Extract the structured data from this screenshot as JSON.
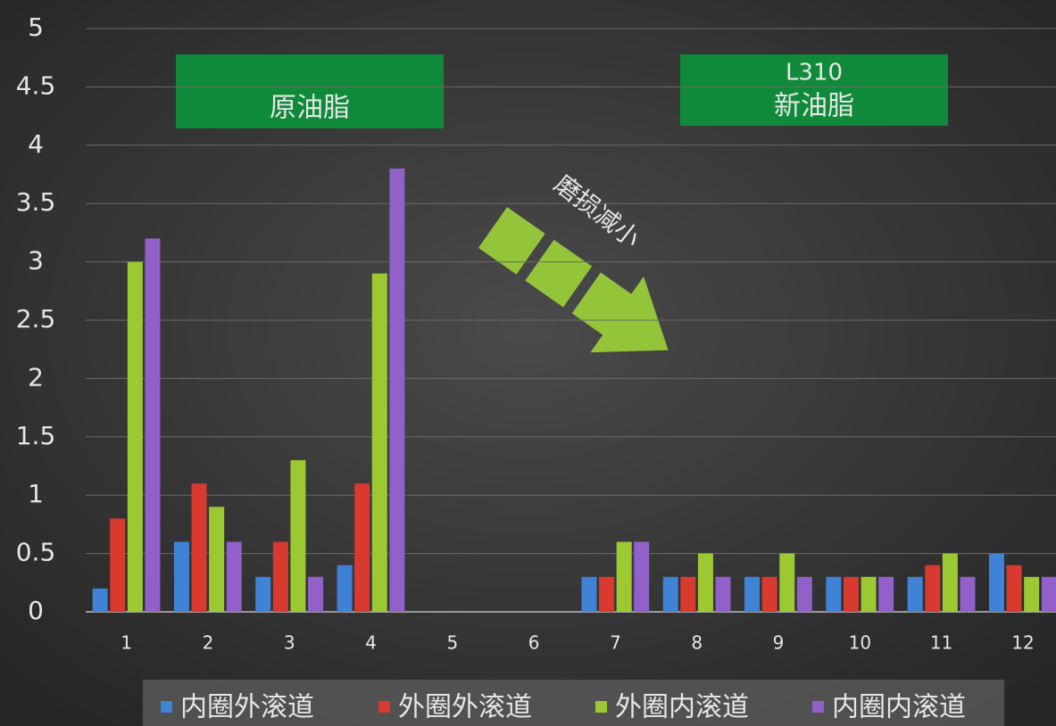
{
  "chart_data": {
    "type": "bar",
    "categories": [
      "1",
      "2",
      "3",
      "4",
      "5",
      "6",
      "7",
      "8",
      "9",
      "10",
      "11",
      "12"
    ],
    "series": [
      {
        "name": "内圈外滚道",
        "color": "#3f82d6",
        "values": [
          0.2,
          0.6,
          0.3,
          0.4,
          null,
          null,
          0.3,
          0.3,
          0.3,
          0.3,
          0.3,
          0.5
        ]
      },
      {
        "name": "外圈外滚道",
        "color": "#d93a2f",
        "values": [
          0.8,
          1.1,
          0.6,
          1.1,
          null,
          null,
          0.3,
          0.3,
          0.3,
          0.3,
          0.4,
          0.4
        ]
      },
      {
        "name": "外圈内滚道",
        "color": "#9cc932",
        "values": [
          3.0,
          0.9,
          1.3,
          2.9,
          null,
          null,
          0.6,
          0.5,
          0.5,
          0.3,
          0.5,
          0.3
        ]
      },
      {
        "name": "内圈内滚道",
        "color": "#9160c8",
        "values": [
          3.2,
          0.6,
          0.3,
          3.8,
          null,
          null,
          0.6,
          0.3,
          0.3,
          0.3,
          0.3,
          0.3
        ]
      }
    ],
    "ylim": [
      0,
      5
    ],
    "yticks": [
      0,
      0.5,
      1,
      1.5,
      2,
      2.5,
      3,
      3.5,
      4,
      4.5,
      5
    ],
    "grid": true,
    "legend": "bottom",
    "annotations": [
      "原油脂",
      "L310",
      "新油脂",
      "磨损减小"
    ]
  }
}
